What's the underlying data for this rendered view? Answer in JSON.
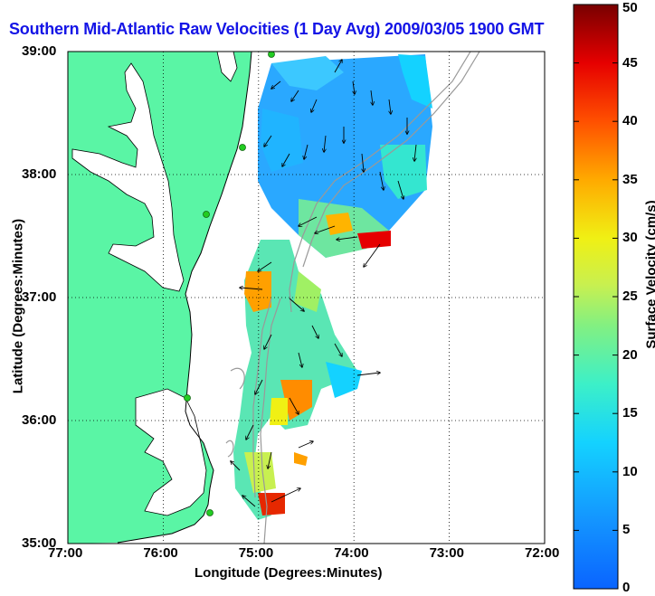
{
  "title": "Southern Mid-Atlantic Raw Velocities (1 Day Avg) 2009/03/05 1900 GMT",
  "xlabel": "Longitude (Degrees:Minutes)",
  "ylabel": "Latitude (Degrees:Minutes)",
  "x_ticks": [
    "77:00",
    "76:00",
    "75:00",
    "74:00",
    "73:00",
    "72:00"
  ],
  "y_ticks": [
    "39:00",
    "38:00",
    "37:00",
    "36:00",
    "35:00"
  ],
  "colorbar": {
    "label": "Surface Velocity (cm/s)",
    "ticks": [
      "0",
      "5",
      "10",
      "15",
      "20",
      "25",
      "30",
      "35",
      "40",
      "45",
      "50"
    ],
    "min": 0,
    "max": 50
  },
  "colors": {
    "land": "#5af5a5",
    "water": "#ffffff",
    "title": "#1414e6",
    "bathymetry": "#999999",
    "station": "#22cc22"
  },
  "chart_data": {
    "type": "heatmap",
    "x_range_deg": [
      -77,
      -72
    ],
    "y_range_deg": [
      35,
      39
    ],
    "grid": true
  }
}
